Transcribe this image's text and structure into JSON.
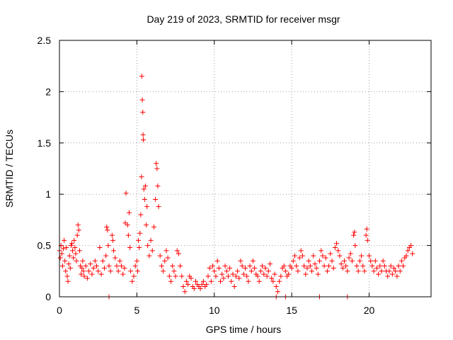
{
  "chart_data": {
    "type": "scatter",
    "title": "Day 219 of 2023, SRMTID for receiver msgr",
    "xlabel": "GPS time / hours",
    "ylabel": "SRMTID / TECUs",
    "xlim": [
      0,
      24
    ],
    "ylim": [
      0,
      2.5
    ],
    "x_ticks": [
      0,
      5,
      10,
      15,
      20
    ],
    "x_tick_labels": [
      "0",
      "5",
      "10",
      "15",
      "20"
    ],
    "y_ticks": [
      0,
      0.5,
      1,
      1.5,
      2,
      2.5
    ],
    "y_tick_labels": [
      "0",
      "0.5",
      "1",
      "1.5",
      "2",
      "2.5"
    ],
    "grid": true,
    "marker": "plus",
    "color": "#ff0000",
    "series": [
      {
        "name": "SRMTID",
        "points": [
          [
            0.0,
            0.45
          ],
          [
            0.05,
            0.38
          ],
          [
            0.1,
            0.5
          ],
          [
            0.15,
            0.42
          ],
          [
            0.2,
            0.3
          ],
          [
            0.25,
            0.47
          ],
          [
            0.3,
            0.55
          ],
          [
            0.35,
            0.35
          ],
          [
            0.4,
            0.25
          ],
          [
            0.45,
            0.48
          ],
          [
            0.5,
            0.2
          ],
          [
            0.55,
            0.15
          ],
          [
            0.6,
            0.32
          ],
          [
            0.65,
            0.4
          ],
          [
            0.7,
            0.28
          ],
          [
            0.75,
            0.5
          ],
          [
            0.8,
            0.52
          ],
          [
            0.85,
            0.45
          ],
          [
            0.9,
            0.38
          ],
          [
            0.95,
            0.55
          ],
          [
            1.0,
            0.48
          ],
          [
            1.05,
            0.42
          ],
          [
            1.1,
            0.35
          ],
          [
            1.15,
            0.6
          ],
          [
            1.2,
            0.7
          ],
          [
            1.25,
            0.65
          ],
          [
            1.3,
            0.45
          ],
          [
            1.35,
            0.3
          ],
          [
            1.4,
            0.22
          ],
          [
            1.45,
            0.28
          ],
          [
            1.5,
            0.35
          ],
          [
            1.55,
            0.25
          ],
          [
            1.6,
            0.2
          ],
          [
            1.7,
            0.3
          ],
          [
            1.8,
            0.18
          ],
          [
            1.9,
            0.25
          ],
          [
            2.0,
            0.32
          ],
          [
            2.1,
            0.22
          ],
          [
            2.2,
            0.28
          ],
          [
            2.3,
            0.35
          ],
          [
            2.4,
            0.3
          ],
          [
            2.5,
            0.25
          ],
          [
            2.6,
            0.48
          ],
          [
            2.7,
            0.22
          ],
          [
            2.8,
            0.35
          ],
          [
            2.9,
            0.28
          ],
          [
            3.0,
            0.4
          ],
          [
            3.05,
            0.68
          ],
          [
            3.1,
            0.65
          ],
          [
            3.15,
            0.5
          ],
          [
            3.2,
            0.3
          ],
          [
            3.3,
            0.25
          ],
          [
            3.4,
            0.6
          ],
          [
            3.45,
            0.55
          ],
          [
            3.5,
            0.45
          ],
          [
            3.6,
            0.38
          ],
          [
            3.7,
            0.3
          ],
          [
            3.8,
            0.25
          ],
          [
            3.9,
            0.35
          ],
          [
            4.0,
            0.3
          ],
          [
            4.1,
            0.22
          ],
          [
            4.2,
            0.28
          ],
          [
            4.25,
            0.72
          ],
          [
            4.3,
            1.01
          ],
          [
            4.4,
            0.7
          ],
          [
            4.45,
            0.6
          ],
          [
            4.5,
            0.82
          ],
          [
            4.55,
            0.48
          ],
          [
            4.6,
            0.25
          ],
          [
            4.7,
            0.15
          ],
          [
            4.8,
            0.2
          ],
          [
            4.9,
            0.3
          ],
          [
            5.0,
            0.35
          ],
          [
            5.05,
            0.25
          ],
          [
            5.1,
            0.55
          ],
          [
            5.15,
            0.48
          ],
          [
            5.2,
            0.62
          ],
          [
            5.25,
            0.8
          ],
          [
            5.3,
            1.17
          ],
          [
            5.32,
            2.15
          ],
          [
            5.35,
            1.92
          ],
          [
            5.38,
            1.8
          ],
          [
            5.4,
            1.58
          ],
          [
            5.42,
            1.53
          ],
          [
            5.45,
            1.05
          ],
          [
            5.5,
            0.95
          ],
          [
            5.55,
            1.08
          ],
          [
            5.6,
            0.7
          ],
          [
            5.65,
            0.88
          ],
          [
            5.7,
            0.5
          ],
          [
            5.8,
            0.4
          ],
          [
            5.9,
            0.55
          ],
          [
            6.0,
            0.45
          ],
          [
            6.1,
            0.68
          ],
          [
            6.2,
            0.95
          ],
          [
            6.25,
            1.3
          ],
          [
            6.3,
            1.25
          ],
          [
            6.35,
            1.08
          ],
          [
            6.4,
            0.88
          ],
          [
            6.5,
            0.4
          ],
          [
            6.6,
            0.3
          ],
          [
            6.7,
            0.25
          ],
          [
            6.8,
            0.35
          ],
          [
            6.9,
            0.45
          ],
          [
            7.0,
            0.38
          ],
          [
            7.1,
            0.2
          ],
          [
            7.2,
            0.15
          ],
          [
            7.3,
            0.3
          ],
          [
            7.4,
            0.25
          ],
          [
            7.5,
            0.2
          ],
          [
            7.6,
            0.45
          ],
          [
            7.7,
            0.42
          ],
          [
            7.8,
            0.3
          ],
          [
            7.9,
            0.2
          ],
          [
            8.0,
            0.1
          ],
          [
            8.1,
            0.05
          ],
          [
            8.2,
            0.15
          ],
          [
            8.3,
            0.12
          ],
          [
            8.4,
            0.2
          ],
          [
            8.5,
            0.18
          ],
          [
            8.6,
            0.1
          ],
          [
            8.7,
            0.08
          ],
          [
            8.8,
            0.15
          ],
          [
            8.9,
            0.12
          ],
          [
            9.0,
            0.1
          ],
          [
            9.1,
            0.08
          ],
          [
            9.2,
            0.12
          ],
          [
            9.3,
            0.15
          ],
          [
            9.4,
            0.1
          ],
          [
            9.5,
            0.12
          ],
          [
            9.6,
            0.2
          ],
          [
            9.7,
            0.28
          ],
          [
            9.8,
            0.15
          ],
          [
            9.9,
            0.3
          ],
          [
            10.0,
            0.25
          ],
          [
            10.1,
            0.2
          ],
          [
            10.2,
            0.35
          ],
          [
            10.3,
            0.28
          ],
          [
            10.4,
            0.15
          ],
          [
            10.5,
            0.22
          ],
          [
            10.6,
            0.18
          ],
          [
            10.7,
            0.3
          ],
          [
            10.8,
            0.25
          ],
          [
            10.9,
            0.2
          ],
          [
            11.0,
            0.28
          ],
          [
            11.1,
            0.15
          ],
          [
            11.2,
            0.22
          ],
          [
            11.3,
            0.1
          ],
          [
            11.4,
            0.2
          ],
          [
            11.5,
            0.25
          ],
          [
            11.6,
            0.18
          ],
          [
            11.7,
            0.35
          ],
          [
            11.8,
            0.3
          ],
          [
            11.9,
            0.22
          ],
          [
            12.0,
            0.28
          ],
          [
            12.1,
            0.2
          ],
          [
            12.2,
            0.15
          ],
          [
            12.3,
            0.3
          ],
          [
            12.4,
            0.25
          ],
          [
            12.5,
            0.35
          ],
          [
            12.6,
            0.28
          ],
          [
            12.7,
            0.22
          ],
          [
            12.8,
            0.2
          ],
          [
            12.9,
            0.15
          ],
          [
            13.0,
            0.25
          ],
          [
            13.1,
            0.3
          ],
          [
            13.2,
            0.22
          ],
          [
            13.3,
            0.28
          ],
          [
            13.4,
            0.2
          ],
          [
            13.5,
            0.25
          ],
          [
            13.6,
            0.32
          ],
          [
            13.7,
            0.18
          ],
          [
            13.8,
            0.15
          ],
          [
            13.9,
            0.22
          ],
          [
            14.0,
            0.1
          ],
          [
            14.1,
            0.05
          ],
          [
            14.2,
            0.15
          ],
          [
            14.3,
            0.2
          ],
          [
            14.4,
            0.28
          ],
          [
            14.5,
            0.3
          ],
          [
            14.6,
            0.25
          ],
          [
            14.7,
            0.2
          ],
          [
            14.8,
            0.22
          ],
          [
            14.9,
            0.3
          ],
          [
            15.0,
            0.28
          ],
          [
            15.1,
            0.35
          ],
          [
            15.2,
            0.4
          ],
          [
            15.3,
            0.3
          ],
          [
            15.4,
            0.25
          ],
          [
            15.5,
            0.38
          ],
          [
            15.6,
            0.45
          ],
          [
            15.7,
            0.4
          ],
          [
            15.8,
            0.3
          ],
          [
            15.9,
            0.22
          ],
          [
            16.0,
            0.28
          ],
          [
            16.1,
            0.35
          ],
          [
            16.2,
            0.3
          ],
          [
            16.3,
            0.25
          ],
          [
            16.4,
            0.4
          ],
          [
            16.5,
            0.32
          ],
          [
            16.6,
            0.28
          ],
          [
            16.7,
            0.22
          ],
          [
            16.8,
            0.35
          ],
          [
            16.9,
            0.45
          ],
          [
            17.0,
            0.4
          ],
          [
            17.1,
            0.3
          ],
          [
            17.2,
            0.38
          ],
          [
            17.3,
            0.25
          ],
          [
            17.4,
            0.3
          ],
          [
            17.5,
            0.42
          ],
          [
            17.6,
            0.35
          ],
          [
            17.7,
            0.28
          ],
          [
            17.8,
            0.48
          ],
          [
            17.9,
            0.52
          ],
          [
            18.0,
            0.45
          ],
          [
            18.1,
            0.4
          ],
          [
            18.2,
            0.32
          ],
          [
            18.3,
            0.28
          ],
          [
            18.4,
            0.35
          ],
          [
            18.5,
            0.3
          ],
          [
            18.6,
            0.25
          ],
          [
            18.7,
            0.38
          ],
          [
            18.8,
            0.42
          ],
          [
            18.9,
            0.35
          ],
          [
            19.0,
            0.6
          ],
          [
            19.05,
            0.63
          ],
          [
            19.1,
            0.5
          ],
          [
            19.2,
            0.3
          ],
          [
            19.3,
            0.25
          ],
          [
            19.4,
            0.35
          ],
          [
            19.5,
            0.4
          ],
          [
            19.6,
            0.3
          ],
          [
            19.7,
            0.25
          ],
          [
            19.8,
            0.6
          ],
          [
            19.85,
            0.66
          ],
          [
            19.9,
            0.55
          ],
          [
            20.0,
            0.4
          ],
          [
            20.1,
            0.35
          ],
          [
            20.2,
            0.3
          ],
          [
            20.3,
            0.25
          ],
          [
            20.4,
            0.35
          ],
          [
            20.5,
            0.28
          ],
          [
            20.6,
            0.22
          ],
          [
            20.7,
            0.3
          ],
          [
            20.8,
            0.25
          ],
          [
            20.9,
            0.35
          ],
          [
            21.0,
            0.3
          ],
          [
            21.1,
            0.25
          ],
          [
            21.2,
            0.2
          ],
          [
            21.3,
            0.25
          ],
          [
            21.4,
            0.3
          ],
          [
            21.5,
            0.22
          ],
          [
            21.6,
            0.28
          ],
          [
            21.7,
            0.25
          ],
          [
            21.8,
            0.2
          ],
          [
            21.9,
            0.3
          ],
          [
            22.0,
            0.25
          ],
          [
            22.1,
            0.35
          ],
          [
            22.2,
            0.3
          ],
          [
            22.3,
            0.38
          ],
          [
            22.4,
            0.4
          ],
          [
            22.5,
            0.45
          ],
          [
            22.6,
            0.48
          ],
          [
            22.7,
            0.5
          ],
          [
            22.8,
            0.42
          ],
          [
            3.2,
            0.0
          ],
          [
            14.0,
            0.0
          ],
          [
            14.6,
            0.0
          ],
          [
            16.8,
            0.0
          ],
          [
            18.6,
            0.0
          ]
        ]
      }
    ]
  }
}
